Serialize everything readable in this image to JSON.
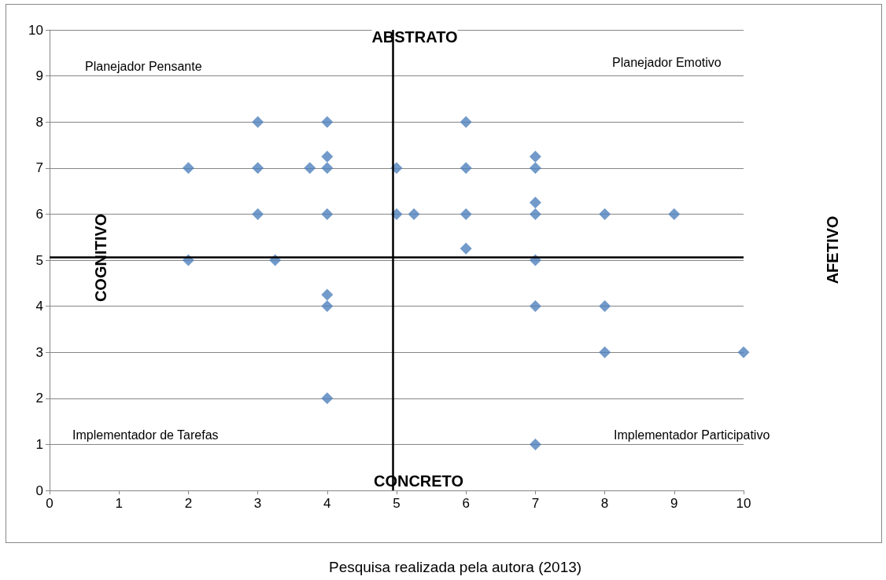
{
  "chart_data": {
    "type": "scatter",
    "x": [
      3,
      4,
      6,
      4,
      7,
      2,
      3,
      3.75,
      4,
      5,
      6,
      7,
      7,
      3,
      4,
      5,
      5.25,
      6,
      7,
      8,
      9,
      6,
      2,
      3.25,
      7,
      4,
      4,
      7,
      8,
      8,
      10,
      4,
      7
    ],
    "values": [
      8,
      8,
      8,
      7.25,
      7.25,
      7,
      7,
      7,
      7,
      7,
      7,
      7,
      6.25,
      6,
      6,
      6,
      6,
      6,
      6,
      6,
      6,
      5.25,
      5,
      5,
      5,
      4.25,
      4,
      4,
      4,
      3,
      3,
      2,
      1
    ],
    "color": "#4f81bd",
    "marker": "diamond",
    "xlim": [
      0,
      10
    ],
    "xticks": [
      0,
      1,
      2,
      3,
      4,
      5,
      6,
      7,
      8,
      9,
      10
    ],
    "ylim": [
      0,
      10
    ],
    "yticks": [
      0,
      1,
      2,
      3,
      4,
      5,
      6,
      7,
      8,
      9,
      10
    ],
    "grid": "y",
    "ref_lines": [
      {
        "axis": "x",
        "value": 4.95,
        "color": "#000000"
      },
      {
        "axis": "y",
        "value": 5.07,
        "color": "#000000"
      }
    ],
    "annotations": [
      "Planejador Pensante",
      "Planejador Emotivo",
      "Implementador de Tarefas",
      "Implementador Participativo",
      "ABSTRATO",
      "CONCRETO",
      "COGNITIVO",
      "AFETIVO",
      "Pesquisa realizada pela autora (2013)"
    ]
  }
}
